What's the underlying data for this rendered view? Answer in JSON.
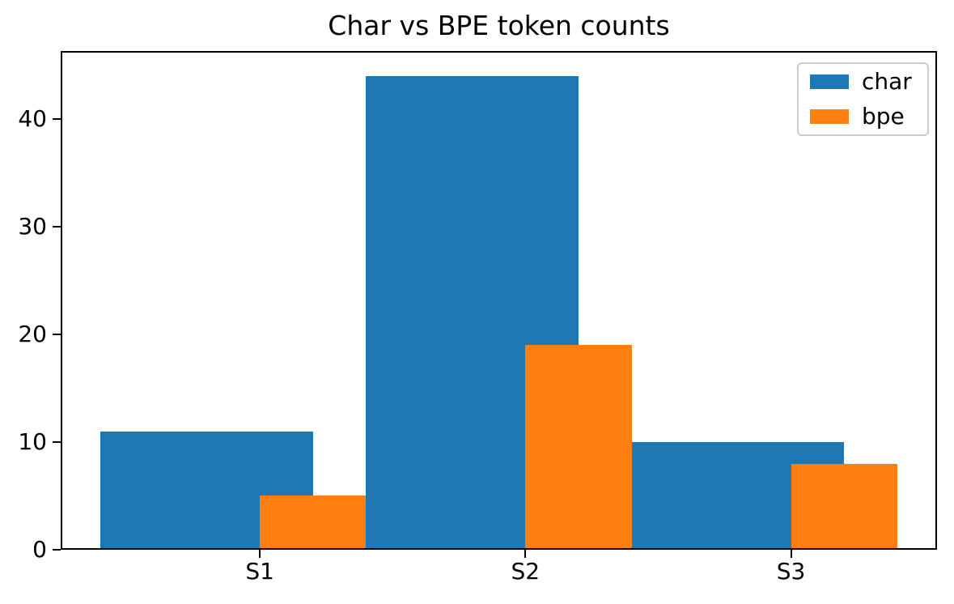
{
  "chart_data": {
    "type": "bar",
    "title": "Char vs BPE token counts",
    "categories": [
      "S1",
      "S2",
      "S3"
    ],
    "series": [
      {
        "name": "char",
        "color": "#1f77b4",
        "values": [
          11,
          44,
          10
        ],
        "offset": -0.2,
        "bar_width": 0.8
      },
      {
        "name": "bpe",
        "color": "#ff7f0e",
        "values": [
          5,
          19,
          8
        ],
        "offset": 0.2,
        "bar_width": 0.4
      }
    ],
    "xlabel": "",
    "ylabel": "",
    "yticks": [
      0,
      10,
      20,
      30,
      40
    ],
    "ylim": [
      0,
      46.3
    ],
    "xlim": [
      -0.75,
      2.55
    ],
    "grid": false,
    "legend": {
      "position": "upper-right",
      "entries": [
        "char",
        "bpe"
      ]
    },
    "colors": {
      "axis": "#000000",
      "text": "#000000",
      "background": "#ffffff",
      "legend_border": "#cccccc"
    }
  }
}
